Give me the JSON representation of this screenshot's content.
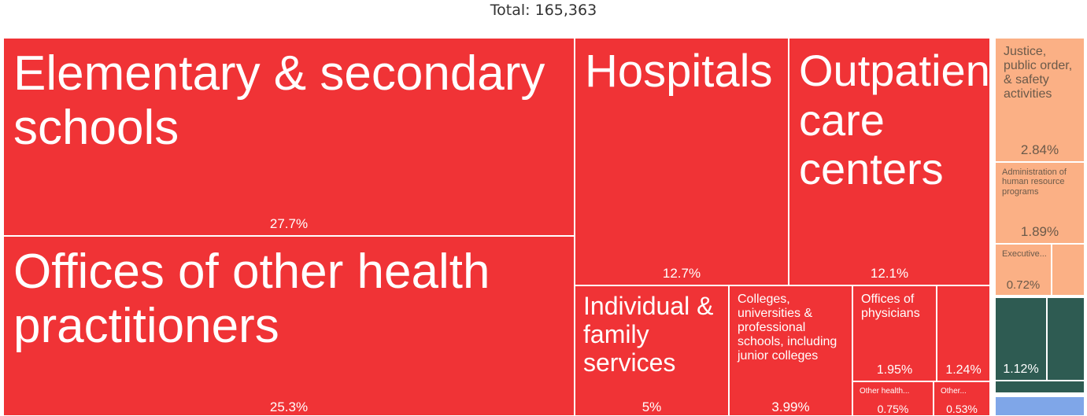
{
  "header": {
    "total_label": "Total: 165,363"
  },
  "colors": {
    "red": "#f03336",
    "orange": "#fbb085",
    "green": "#2e5b52",
    "blue": "#7fa6e8"
  },
  "chart_data": {
    "type": "treemap",
    "total": 165363,
    "items": [
      {
        "label": "Elementary & secondary schools",
        "value_label": "27.7%",
        "value": 27.7,
        "group": "red"
      },
      {
        "label": "Offices of other health practitioners",
        "value_label": "25.3%",
        "value": 25.3,
        "group": "red"
      },
      {
        "label": "Hospitals",
        "value_label": "12.7%",
        "value": 12.7,
        "group": "red"
      },
      {
        "label": "Outpatient care centers",
        "value_label": "12.1%",
        "value": 12.1,
        "group": "red"
      },
      {
        "label": "Individual & family services",
        "value_label": "5%",
        "value": 5,
        "group": "red"
      },
      {
        "label": "Colleges, universities & professional schools, including junior colleges",
        "value_label": "3.99%",
        "value": 3.99,
        "group": "red"
      },
      {
        "label": "Offices of physicians",
        "value_label": "1.95%",
        "value": 1.95,
        "group": "red"
      },
      {
        "label": "",
        "value_label": "1.24%",
        "value": 1.24,
        "group": "red"
      },
      {
        "label": "Other health...",
        "value_label": "0.75%",
        "value": 0.75,
        "group": "red"
      },
      {
        "label": "Other...",
        "value_label": "0.53%",
        "value": 0.53,
        "group": "red"
      },
      {
        "label": "Justice, public order, & safety activities",
        "value_label": "2.84%",
        "value": 2.84,
        "group": "orange"
      },
      {
        "label": "Administration of human resource programs",
        "value_label": "1.89%",
        "value": 1.89,
        "group": "orange"
      },
      {
        "label": "Executive...",
        "value_label": "0.72%",
        "value": 0.72,
        "group": "orange"
      },
      {
        "label": "",
        "value_label": "",
        "value": null,
        "group": "orange"
      },
      {
        "label": "",
        "value_label": "1.12%",
        "value": 1.12,
        "group": "green"
      },
      {
        "label": "",
        "value_label": "",
        "value": null,
        "group": "green"
      },
      {
        "label": "",
        "value_label": "",
        "value": null,
        "group": "green"
      },
      {
        "label": "",
        "value_label": "",
        "value": null,
        "group": "blue"
      }
    ]
  }
}
